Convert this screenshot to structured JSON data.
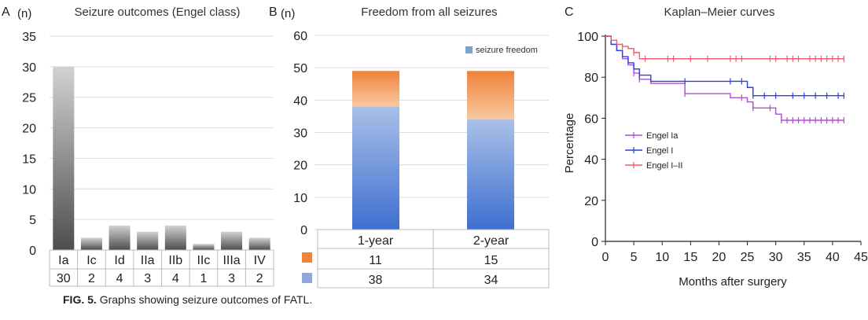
{
  "caption": {
    "label": "FIG. 5.",
    "text": "Graphs showing seizure outcomes of FATL."
  },
  "colors": {
    "bar_dark": "#4d4d4d",
    "bar_light": "#cfcfcf",
    "blue_top": "#a9c0e8",
    "blue_bottom": "#3e6fd0",
    "orange_top": "#f0823a",
    "orange_bottom": "#f8c9a0",
    "engel_ia": "#b44ad8",
    "engel_i": "#2f3fe0",
    "engel_i_ii": "#ef5a6c",
    "grid": "#dcdcdc"
  },
  "chart_data": [
    {
      "panel": "A",
      "type": "bar",
      "title": "Seizure outcomes (Engel class)",
      "ylabel": "(n)",
      "ylim": [
        0,
        35
      ],
      "yticks": [
        0,
        5,
        10,
        15,
        20,
        25,
        30,
        35
      ],
      "categories": [
        "Ia",
        "Ic",
        "Id",
        "IIa",
        "IIb",
        "IIc",
        "IIIa",
        "IV"
      ],
      "values": [
        30,
        2,
        4,
        3,
        4,
        1,
        3,
        2
      ],
      "grid": true
    },
    {
      "panel": "B",
      "type": "bar",
      "stacked": true,
      "title": "Freedom from all seizures",
      "ylabel": "(n)",
      "ylim": [
        0,
        60
      ],
      "yticks": [
        0,
        10,
        20,
        30,
        40,
        50,
        60
      ],
      "categories": [
        "1-year",
        "2-year"
      ],
      "series": [
        {
          "name": "seizure freedom",
          "values": [
            38,
            34
          ],
          "color_key": "blue"
        },
        {
          "values": [
            11,
            15
          ],
          "color_key": "orange"
        }
      ],
      "legend": "top-right",
      "grid": true
    },
    {
      "panel": "C",
      "type": "line",
      "title": "Kaplan–Meier curves",
      "xlabel": "Months after surgery",
      "ylabel": "Percentage",
      "xlim": [
        0,
        45
      ],
      "ylim": [
        0,
        100
      ],
      "xticks": [
        0,
        5,
        10,
        15,
        20,
        25,
        30,
        35,
        40,
        45
      ],
      "yticks": [
        0,
        20,
        40,
        60,
        80,
        100
      ],
      "legend": "left-middle",
      "series": [
        {
          "name": "Engel Ia",
          "color_key": "engel_ia",
          "x": [
            0,
            1,
            2,
            3,
            4,
            5,
            6,
            8,
            14,
            22,
            25,
            26,
            30,
            31,
            42
          ],
          "y": [
            100,
            96,
            93,
            89,
            86,
            82,
            79,
            77,
            72,
            70,
            68,
            65,
            62,
            59,
            59
          ],
          "censor_x": [
            5,
            6,
            14,
            24,
            26,
            29,
            31,
            32,
            33,
            34,
            35,
            36,
            37,
            38,
            39,
            40,
            41,
            42
          ]
        },
        {
          "name": "Engel I",
          "color_key": "engel_i",
          "x": [
            0,
            1,
            2,
            3,
            4,
            5,
            6,
            8,
            25,
            26,
            42
          ],
          "y": [
            100,
            96,
            93,
            90,
            87,
            84,
            81,
            78,
            75,
            71,
            71
          ],
          "censor_x": [
            6,
            14,
            22,
            24,
            26,
            28,
            30,
            33,
            35,
            37,
            39,
            41,
            42
          ]
        },
        {
          "name": "Engel I–II",
          "color_key": "engel_i_ii",
          "x": [
            0,
            1,
            2,
            3,
            4,
            5,
            6,
            42
          ],
          "y": [
            100,
            98,
            96,
            95,
            94,
            92,
            89,
            89
          ],
          "censor_x": [
            3,
            5,
            7,
            11,
            12,
            15,
            18,
            22,
            23,
            24,
            29,
            30,
            32,
            33,
            34,
            36,
            37,
            38,
            39,
            40,
            41,
            42
          ]
        }
      ]
    }
  ]
}
